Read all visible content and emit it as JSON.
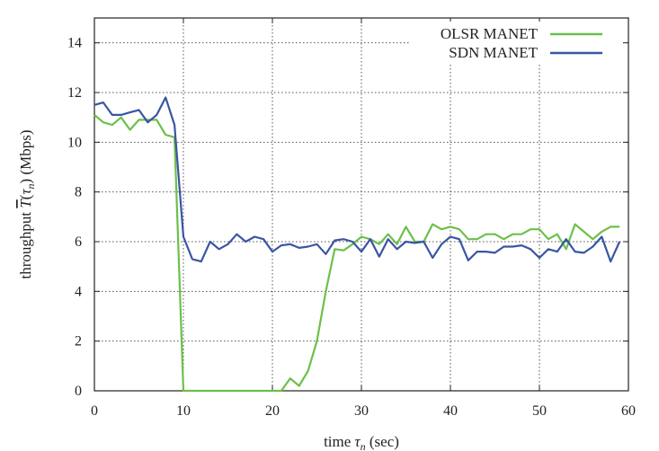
{
  "chart_data": {
    "type": "line",
    "title": "",
    "xlabel": "time τn (sec)",
    "ylabel": "throughput T(τn) (Mbps)",
    "xlim": [
      0,
      60
    ],
    "ylim": [
      0,
      15
    ],
    "x_ticks": [
      "0",
      "10",
      "20",
      "30",
      "40",
      "50",
      "60"
    ],
    "y_ticks": [
      "0",
      "2",
      "4",
      "6",
      "8",
      "10",
      "12",
      "14"
    ],
    "grid": true,
    "legend_position": "top-right",
    "x": [
      0,
      1,
      2,
      3,
      4,
      5,
      6,
      7,
      8,
      9,
      10,
      11,
      12,
      13,
      14,
      15,
      16,
      17,
      18,
      19,
      20,
      21,
      22,
      23,
      24,
      25,
      26,
      27,
      28,
      29,
      30,
      31,
      32,
      33,
      34,
      35,
      36,
      37,
      38,
      39,
      40,
      41,
      42,
      43,
      44,
      45,
      46,
      47,
      48,
      49,
      50,
      51,
      52,
      53,
      54,
      55,
      56,
      57,
      58,
      59
    ],
    "series": [
      {
        "name": "OLSR MANET",
        "color": "#6cc04a",
        "values": [
          11.1,
          10.8,
          10.7,
          11.0,
          10.5,
          10.9,
          10.9,
          10.9,
          10.3,
          10.2,
          0,
          0,
          0,
          0,
          0,
          0,
          0,
          0,
          0,
          0,
          0,
          0,
          0.5,
          0.2,
          0.8,
          2.0,
          4.0,
          5.7,
          5.65,
          5.9,
          6.2,
          6.1,
          5.9,
          6.3,
          5.9,
          6.6,
          6.0,
          6.0,
          6.7,
          6.5,
          6.6,
          6.5,
          6.1,
          6.1,
          6.3,
          6.3,
          6.1,
          6.3,
          6.3,
          6.5,
          6.5,
          6.1,
          6.3,
          5.7,
          6.7,
          6.4,
          6.1,
          6.4,
          6.6,
          6.6
        ]
      },
      {
        "name": "SDN MANET",
        "color": "#3a55a3",
        "values": [
          11.5,
          11.6,
          11.1,
          11.1,
          11.2,
          11.3,
          10.8,
          11.1,
          11.8,
          10.7,
          6.2,
          5.3,
          5.2,
          6.0,
          5.7,
          5.9,
          6.3,
          6.0,
          6.2,
          6.1,
          5.6,
          5.85,
          5.9,
          5.75,
          5.8,
          5.9,
          5.5,
          6.05,
          6.1,
          6.0,
          5.6,
          6.1,
          5.4,
          6.1,
          5.7,
          6.0,
          5.95,
          6.0,
          5.35,
          5.9,
          6.2,
          6.1,
          5.25,
          5.6,
          5.6,
          5.55,
          5.8,
          5.8,
          5.85,
          5.7,
          5.35,
          5.7,
          5.6,
          6.1,
          5.6,
          5.55,
          5.8,
          6.2,
          5.2,
          6.0
        ]
      }
    ]
  }
}
